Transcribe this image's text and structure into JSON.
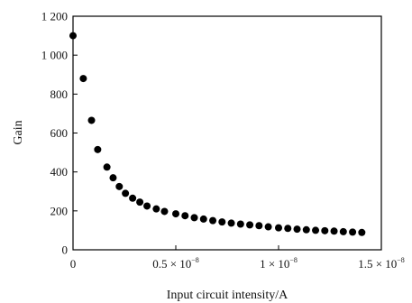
{
  "chart_data": {
    "type": "scatter",
    "title": "",
    "xlabel": "Input circuit intensity/A",
    "ylabel": "Gain",
    "xlim": [
      0,
      1.5e-08
    ],
    "ylim": [
      0,
      1200
    ],
    "grid": false,
    "x_ticks": [
      {
        "value": 0,
        "mantissa": "0",
        "exp": ""
      },
      {
        "value": 5e-09,
        "mantissa": "0.5 × 10",
        "exp": "−8"
      },
      {
        "value": 1e-08,
        "mantissa": "1 × 10",
        "exp": "−8"
      },
      {
        "value": 1.5e-08,
        "mantissa": "1.5 × 10",
        "exp": "−8"
      }
    ],
    "y_ticks": [
      {
        "value": 0,
        "label": "0"
      },
      {
        "value": 200,
        "label": "200"
      },
      {
        "value": 400,
        "label": "400"
      },
      {
        "value": 600,
        "label": "600"
      },
      {
        "value": 800,
        "label": "800"
      },
      {
        "value": 1000,
        "label": "1 000"
      },
      {
        "value": 1200,
        "label": "1 200"
      }
    ],
    "series": [
      {
        "color": "#000000",
        "x": [
          0.0,
          5e-10,
          9e-10,
          1.2e-09,
          1.65e-09,
          1.95e-09,
          2.25e-09,
          2.55e-09,
          2.9e-09,
          3.25e-09,
          3.6e-09,
          4.05e-09,
          4.45e-09,
          5e-09,
          5.45e-09,
          5.9e-09,
          6.35e-09,
          6.8e-09,
          7.25e-09,
          7.7e-09,
          8.15e-09,
          8.6e-09,
          9.05e-09,
          9.5e-09,
          1e-08,
          1.045e-08,
          1.09e-08,
          1.135e-08,
          1.18e-08,
          1.225e-08,
          1.27e-08,
          1.315e-08,
          1.36e-08,
          1.405e-08
        ],
        "y": [
          1100,
          880,
          665,
          515,
          425,
          370,
          325,
          290,
          265,
          245,
          225,
          210,
          197,
          185,
          175,
          165,
          158,
          150,
          143,
          137,
          132,
          128,
          124,
          118,
          113,
          110,
          106,
          103,
          100,
          98,
          96,
          93,
          91,
          89
        ]
      }
    ]
  }
}
